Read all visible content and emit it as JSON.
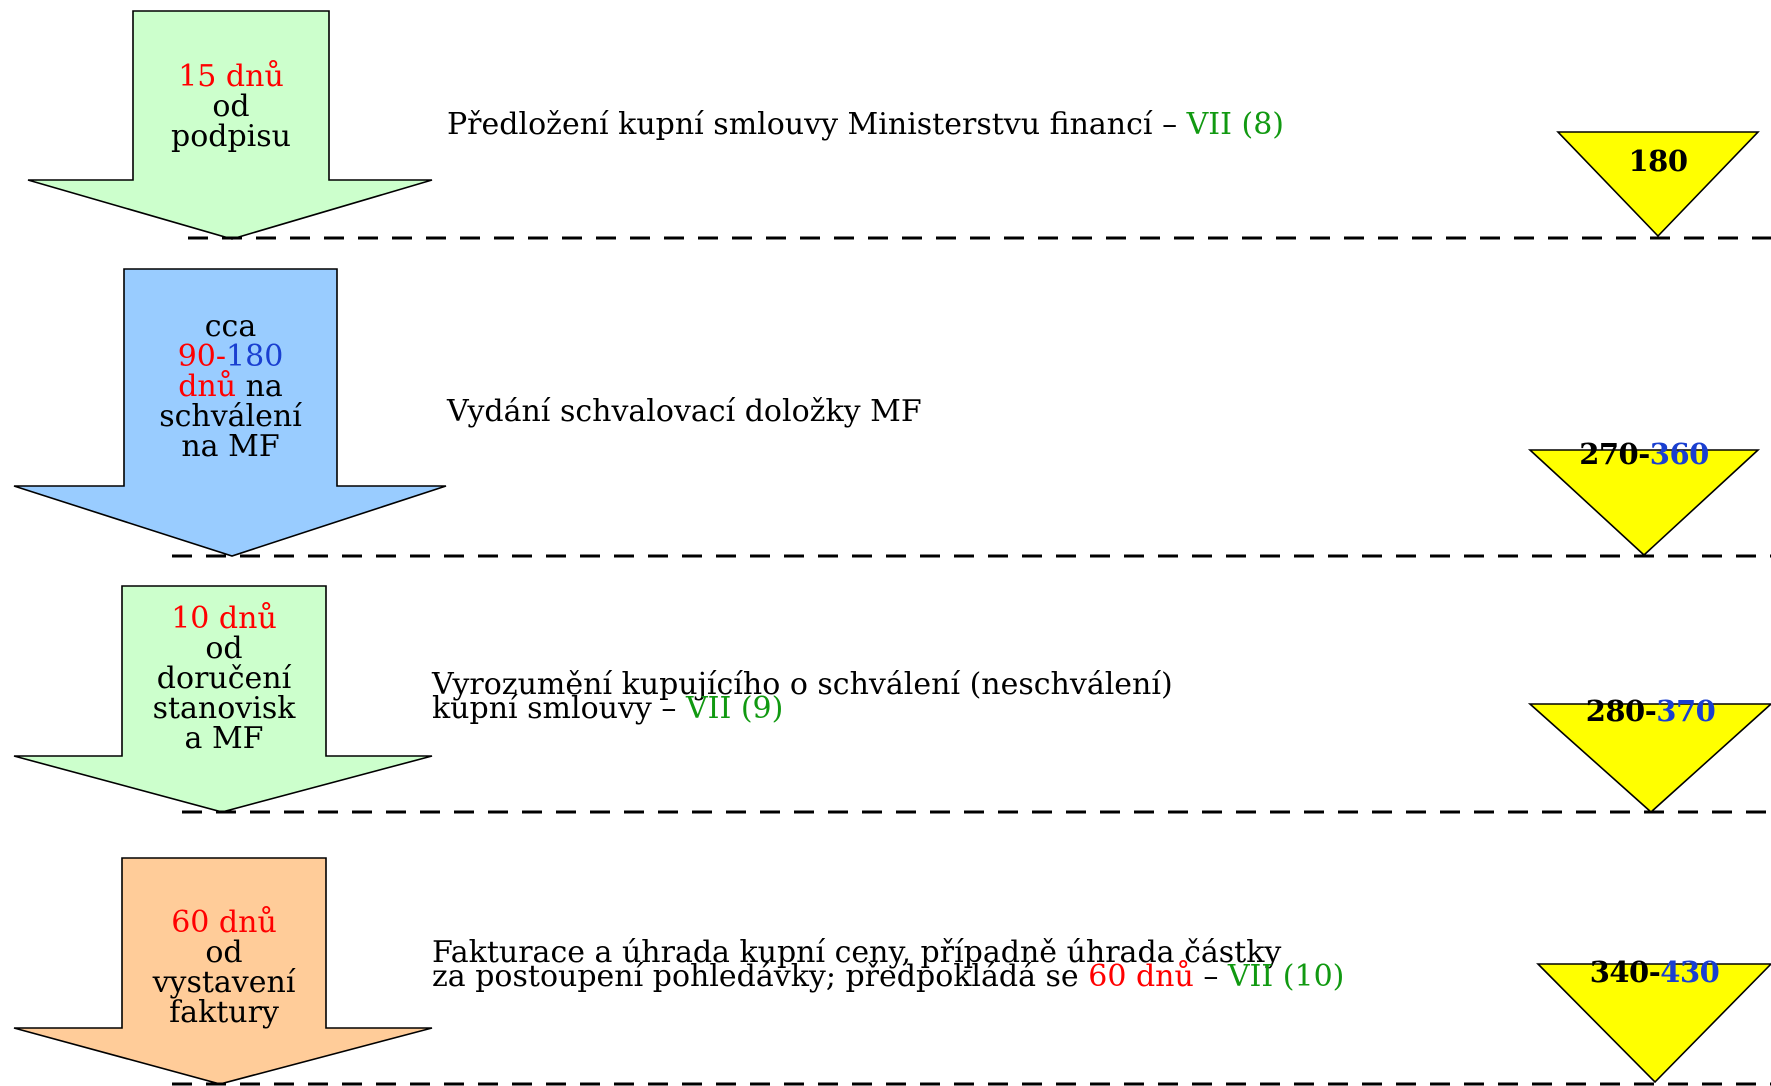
{
  "colors": {
    "arrow_green": "#ccffcc",
    "arrow_blue": "#99ccff",
    "arrow_orange": "#ffcc99",
    "triangle_yellow": "#ffff00",
    "text_red": "#ff0000",
    "text_blue": "#1a3fd0",
    "text_green": "#119911"
  },
  "steps": [
    {
      "arrow": {
        "line1_red": "15 dnů",
        "line2": "od",
        "line3": "podpisu"
      },
      "text": {
        "main": "Předložení kupní smlouvy Ministerstvu financí – ",
        "ref": "VII (8)"
      },
      "total": {
        "start": "180"
      }
    },
    {
      "arrow": {
        "line1": "cca",
        "line2_red": "90-",
        "line2_blue": "180",
        "line3_red": "dnů",
        "line3_black": " na",
        "line4": "schválení",
        "line5": "na MF"
      },
      "text": {
        "main": "Vydání schvalovací doložky MF"
      },
      "total": {
        "start": "270-",
        "end": "360"
      }
    },
    {
      "arrow": {
        "line1_red": "10 dnů",
        "line2": "od",
        "line3": "doručení",
        "line4": "stanovisk",
        "line5": "a MF"
      },
      "text": {
        "line1": "Vyrozumění kupujícího o schválení (neschválení)",
        "line2": "kupní smlouvy – ",
        "ref": "VII (9)"
      },
      "total": {
        "start": "280-",
        "end": "370"
      }
    },
    {
      "arrow": {
        "line1_red": "60 dnů",
        "line2": "od",
        "line3": "vystavení",
        "line4": "faktury"
      },
      "text": {
        "line1": "Fakturace a úhrada kupní ceny, případně úhrada částky",
        "line2": "za postoupení pohledávky; předpokládá se ",
        "line2_red": "60 dnů",
        "line2_tail": " – ",
        "ref": "VII (10)"
      },
      "total": {
        "start": "340-",
        "end": "430"
      }
    }
  ]
}
